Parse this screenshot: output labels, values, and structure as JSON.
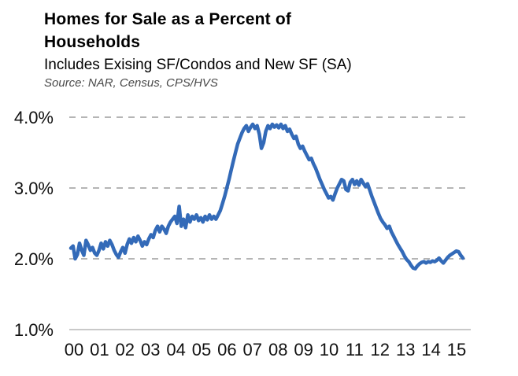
{
  "header": {
    "title_line1": "Homes for Sale as a Percent of",
    "title_line2": "Households",
    "subtitle": "Includes Exising SF/Condos and New SF (SA)",
    "source": "Source: NAR, Census, CPS/HVS"
  },
  "chart_data": {
    "type": "line",
    "title": "Homes for Sale as a Percent of Households",
    "subtitle": "Includes Exising SF/Condos and New SF (SA)",
    "source": "Source: NAR, Census, CPS/HVS",
    "xlabel": "",
    "ylabel": "",
    "y_range": [
      1.0,
      4.0
    ],
    "grid": "horizontal-only",
    "legend": "none",
    "x_tick_labels": [
      "00",
      "01",
      "02",
      "03",
      "04",
      "05",
      "06",
      "07",
      "08",
      "09",
      "10",
      "11",
      "12",
      "13",
      "14",
      "15"
    ],
    "y_ticks": [
      {
        "label": "4.0%",
        "value": 4.0,
        "grid": "dashed"
      },
      {
        "label": "3.0%",
        "value": 3.0,
        "grid": "dashed"
      },
      {
        "label": "2.0%",
        "value": 2.0,
        "grid": "dashed"
      },
      {
        "label": "1.0%",
        "value": 1.0,
        "grid": "solid"
      }
    ],
    "colors": {
      "line": "#336ab8",
      "grid_dashed": "#ababab",
      "grid_solid": "#c9c9c9",
      "tick_text": "#111111",
      "source_text": "#4a4a4a"
    },
    "series": [
      {
        "name": "Homes for sale as a percent of households",
        "frequency": "monthly",
        "x_start": "2000-01",
        "x_end": "2015-02",
        "unit": "percent",
        "values": [
          2.15,
          2.18,
          2.0,
          2.06,
          2.22,
          2.12,
          2.05,
          2.26,
          2.2,
          2.12,
          2.16,
          2.08,
          2.05,
          2.12,
          2.22,
          2.14,
          2.24,
          2.18,
          2.26,
          2.2,
          2.12,
          2.06,
          2.02,
          2.1,
          2.16,
          2.08,
          2.2,
          2.28,
          2.22,
          2.3,
          2.24,
          2.32,
          2.26,
          2.18,
          2.24,
          2.2,
          2.28,
          2.34,
          2.3,
          2.4,
          2.46,
          2.38,
          2.46,
          2.42,
          2.36,
          2.46,
          2.52,
          2.56,
          2.6,
          2.5,
          2.74,
          2.46,
          2.56,
          2.44,
          2.62,
          2.52,
          2.6,
          2.56,
          2.62,
          2.54,
          2.58,
          2.52,
          2.6,
          2.55,
          2.62,
          2.56,
          2.6,
          2.56,
          2.62,
          2.68,
          2.78,
          2.88,
          3.0,
          3.12,
          3.25,
          3.38,
          3.5,
          3.62,
          3.7,
          3.78,
          3.84,
          3.88,
          3.8,
          3.86,
          3.9,
          3.84,
          3.88,
          3.76,
          3.56,
          3.64,
          3.8,
          3.88,
          3.84,
          3.9,
          3.86,
          3.89,
          3.85,
          3.9,
          3.84,
          3.88,
          3.8,
          3.83,
          3.76,
          3.7,
          3.73,
          3.62,
          3.56,
          3.59,
          3.52,
          3.46,
          3.4,
          3.42,
          3.34,
          3.28,
          3.2,
          3.12,
          3.05,
          2.98,
          2.92,
          2.86,
          2.88,
          2.83,
          2.92,
          3.0,
          3.06,
          3.12,
          3.1,
          2.98,
          2.96,
          3.08,
          3.12,
          3.05,
          3.1,
          3.04,
          3.12,
          3.07,
          3.02,
          3.06,
          2.97,
          2.88,
          2.8,
          2.72,
          2.64,
          2.57,
          2.52,
          2.48,
          2.43,
          2.46,
          2.38,
          2.32,
          2.26,
          2.2,
          2.15,
          2.1,
          2.04,
          1.99,
          1.96,
          1.91,
          1.87,
          1.86,
          1.9,
          1.93,
          1.95,
          1.96,
          1.94,
          1.96,
          1.95,
          1.97,
          1.96,
          1.98,
          2.01,
          1.97,
          1.94,
          1.98,
          2.02,
          2.05,
          2.07,
          2.09,
          2.11,
          2.1,
          2.05,
          2.01
        ]
      }
    ]
  }
}
